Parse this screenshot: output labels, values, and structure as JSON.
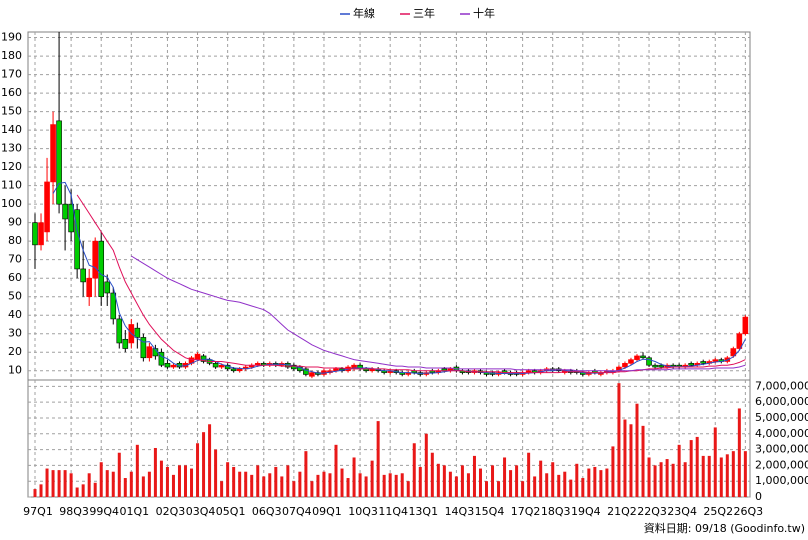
{
  "chart_data": [
    {
      "type": "candlestick",
      "legend_position": "top",
      "grid": true,
      "up_color": "#ff0000",
      "down_color": "#00cc00",
      "categories": [
        "97Q1",
        null,
        null,
        null,
        null,
        null,
        "98Q3",
        null,
        null,
        null,
        null,
        "99Q4",
        null,
        null,
        null,
        null,
        "01Q1",
        null,
        null,
        null,
        null,
        null,
        "02Q3",
        null,
        null,
        null,
        null,
        "03Q4",
        null,
        null,
        null,
        null,
        "05Q1",
        null,
        null,
        null,
        null,
        null,
        "06Q3",
        null,
        null,
        null,
        null,
        "07Q4",
        null,
        null,
        null,
        null,
        "09Q1",
        null,
        null,
        null,
        null,
        null,
        "10Q3",
        null,
        null,
        null,
        null,
        "11Q4",
        null,
        null,
        null,
        null,
        "13Q1",
        null,
        null,
        null,
        null,
        null,
        "14Q3",
        null,
        null,
        null,
        null,
        "15Q4",
        null,
        null,
        null,
        null,
        null,
        "17Q2",
        null,
        null,
        null,
        null,
        "18Q3",
        null,
        null,
        null,
        null,
        "19Q4",
        null,
        null,
        null,
        null,
        null,
        "21Q2",
        null,
        null,
        null,
        null,
        "22Q3",
        null,
        null,
        null,
        null,
        "23Q4",
        null,
        null,
        null,
        null,
        null,
        "25Q2",
        null,
        null,
        null,
        null,
        "26Q3"
      ],
      "open": [
        90,
        78,
        85,
        112,
        145,
        100,
        100,
        97,
        65,
        50,
        60,
        80,
        58,
        52,
        38,
        27,
        25,
        33,
        28,
        17,
        22,
        20,
        14,
        12,
        14,
        12,
        14,
        16,
        18,
        16,
        14,
        12,
        13,
        11,
        10,
        11,
        12,
        13,
        14,
        13,
        14,
        13,
        14,
        13,
        12,
        11,
        7,
        9,
        8,
        9,
        10,
        11,
        10,
        11,
        13,
        11,
        10,
        11,
        10,
        9,
        10,
        9,
        8,
        10,
        9,
        8,
        10,
        9,
        11,
        10,
        12,
        10,
        10,
        9,
        10,
        9,
        9,
        8,
        10,
        9,
        9,
        8,
        9,
        10,
        9,
        10,
        11,
        11,
        9,
        10,
        10,
        9,
        8,
        10,
        8,
        9,
        9,
        10,
        12,
        14,
        16,
        18,
        17,
        13,
        13,
        12,
        13,
        13,
        12,
        14,
        13,
        15,
        14,
        15,
        16,
        15,
        18,
        22,
        30
      ],
      "high": [
        95,
        95,
        125,
        150,
        193,
        110,
        108,
        100,
        80,
        65,
        82,
        85,
        62,
        55,
        40,
        32,
        38,
        36,
        30,
        25,
        24,
        22,
        16,
        14,
        15,
        15,
        18,
        20,
        19,
        17,
        15,
        14,
        14,
        12,
        12,
        13,
        14,
        15,
        15,
        15,
        15,
        15,
        15,
        14,
        13,
        12,
        10,
        10,
        11,
        11,
        12,
        12,
        13,
        14,
        14,
        12,
        12,
        12,
        11,
        11,
        11,
        10,
        10,
        11,
        10,
        10,
        11,
        11,
        12,
        12,
        13,
        11,
        11,
        11,
        11,
        10,
        10,
        10,
        11,
        10,
        10,
        10,
        11,
        11,
        11,
        12,
        12,
        12,
        11,
        11,
        11,
        10,
        10,
        11,
        10,
        11,
        11,
        13,
        15,
        17,
        19,
        20,
        18,
        14,
        14,
        14,
        14,
        14,
        14,
        15,
        15,
        16,
        16,
        17,
        17,
        18,
        23,
        31,
        40
      ],
      "low": [
        65,
        75,
        80,
        100,
        95,
        75,
        80,
        60,
        50,
        45,
        50,
        45,
        45,
        35,
        22,
        20,
        22,
        22,
        15,
        15,
        16,
        12,
        11,
        11,
        11,
        11,
        13,
        15,
        14,
        13,
        11,
        11,
        10,
        9,
        9,
        10,
        11,
        12,
        12,
        12,
        12,
        12,
        11,
        10,
        9,
        7,
        6,
        7,
        7,
        8,
        9,
        9,
        9,
        10,
        10,
        9,
        9,
        9,
        8,
        8,
        8,
        7,
        7,
        8,
        7,
        7,
        8,
        8,
        9,
        9,
        9,
        8,
        8,
        8,
        8,
        7,
        7,
        7,
        8,
        7,
        7,
        7,
        8,
        8,
        8,
        9,
        9,
        9,
        8,
        8,
        8,
        7,
        7,
        8,
        7,
        8,
        8,
        9,
        11,
        13,
        15,
        16,
        12,
        11,
        11,
        11,
        11,
        11,
        11,
        12,
        12,
        13,
        13,
        14,
        14,
        14,
        17,
        21,
        29
      ],
      "close": [
        78,
        90,
        112,
        143,
        100,
        92,
        85,
        65,
        58,
        60,
        80,
        50,
        52,
        38,
        25,
        22,
        35,
        28,
        17,
        23,
        18,
        13,
        12,
        13,
        12,
        14,
        17,
        19,
        15,
        14,
        12,
        13,
        11,
        10,
        11,
        12,
        13,
        14,
        13,
        14,
        13,
        14,
        12,
        11,
        10,
        8,
        9,
        8,
        10,
        10,
        11,
        10,
        12,
        13,
        11,
        10,
        11,
        10,
        9,
        10,
        9,
        8,
        9,
        9,
        8,
        9,
        9,
        10,
        10,
        11,
        10,
        9,
        9,
        10,
        9,
        8,
        8,
        9,
        9,
        8,
        8,
        9,
        10,
        9,
        10,
        11,
        10,
        10,
        10,
        9,
        9,
        8,
        9,
        9,
        9,
        10,
        10,
        12,
        14,
        16,
        18,
        17,
        13,
        12,
        12,
        13,
        12,
        12,
        13,
        13,
        14,
        14,
        15,
        16,
        15,
        17,
        22,
        30,
        39
      ],
      "series": [
        {
          "name": "年線",
          "color": "#2a4fc8",
          "values": [
            null,
            null,
            null,
            105.75,
            111.25,
            111.75,
            105,
            85.5,
            75,
            67,
            65.75,
            62,
            60.5,
            55,
            41.25,
            34.25,
            30,
            27.5,
            25.5,
            25.75,
            21.5,
            17.75,
            16.5,
            14,
            12.5,
            12.75,
            14,
            15.5,
            16.25,
            16.25,
            15,
            13.5,
            12.5,
            11.5,
            11.25,
            11,
            11.5,
            12.5,
            13,
            13.5,
            13.5,
            13.5,
            13.25,
            12.5,
            11.75,
            10.25,
            9.5,
            8.75,
            8.75,
            9.25,
            9.75,
            10.25,
            10.75,
            11.5,
            11.5,
            11.5,
            11.25,
            10.5,
            10,
            10,
            9.5,
            9,
            9,
            8.75,
            8.5,
            8.75,
            8.75,
            9,
            9.5,
            10,
            10.25,
            10,
            9.75,
            9.5,
            9.25,
            9,
            8.75,
            8.5,
            8.5,
            8.5,
            8.5,
            8.5,
            8.75,
            9,
            9.5,
            10,
            10,
            10.5,
            10.25,
            9.75,
            9.5,
            9,
            8.75,
            8.75,
            8.75,
            9.25,
            9.5,
            10.25,
            11.5,
            13,
            15,
            16.25,
            16,
            15,
            13.5,
            12.5,
            12.25,
            12.25,
            12.25,
            12.5,
            13,
            13.5,
            14,
            14.75,
            15,
            15.75,
            17.5,
            21,
            27
          ]
        },
        {
          "name": "三年",
          "color": "#e0105a",
          "values": [
            null,
            null,
            null,
            null,
            null,
            null,
            null,
            105,
            100,
            95,
            90,
            85,
            80,
            75,
            66,
            58,
            52,
            46,
            40,
            35,
            31,
            27,
            24,
            21,
            19,
            17,
            16,
            16,
            15.5,
            15,
            15,
            15,
            14.5,
            14,
            13.5,
            13,
            13,
            13,
            13,
            13,
            13,
            12.5,
            12.5,
            12.5,
            12.5,
            12,
            12,
            12,
            11.5,
            11.5,
            11.5,
            11.5,
            11,
            11,
            11,
            11,
            11,
            11,
            11,
            10.5,
            10.5,
            10.5,
            10.5,
            10,
            10,
            10,
            10,
            10,
            10,
            10,
            10,
            10,
            9.5,
            9.5,
            9.5,
            9.5,
            9.5,
            9.5,
            9,
            9,
            9,
            9,
            9,
            9,
            9,
            9,
            9,
            9,
            9.5,
            9.5,
            9.5,
            9.5,
            9,
            9,
            9,
            9,
            9,
            9.5,
            9.5,
            10,
            10,
            10.5,
            11,
            11,
            11.5,
            11.5,
            12,
            12,
            12,
            12,
            12,
            12,
            12.5,
            12.5,
            13,
            13,
            13.5,
            14.5,
            16
          ]
        },
        {
          "name": "十年",
          "color": "#9030c8",
          "values": [
            null,
            null,
            null,
            null,
            null,
            null,
            null,
            null,
            null,
            null,
            null,
            null,
            null,
            null,
            null,
            null,
            72,
            70,
            68,
            66,
            64,
            62,
            60,
            58.5,
            57,
            55.5,
            54,
            53,
            52,
            51,
            50,
            49,
            48,
            47.5,
            47,
            46,
            45,
            44,
            43,
            41,
            38,
            35,
            32,
            30,
            28,
            26,
            24,
            22.5,
            21,
            20,
            19,
            18,
            17,
            16,
            15.5,
            15,
            14.5,
            14,
            13.5,
            13,
            12.5,
            12.5,
            12,
            12,
            12,
            11.5,
            11.5,
            11.5,
            11.5,
            11.5,
            11,
            11,
            11,
            11,
            11,
            11,
            11,
            11,
            11,
            11,
            10.5,
            10.5,
            10.5,
            10.5,
            10.5,
            10.5,
            10.5,
            10.5,
            10.5,
            10.5,
            10,
            10,
            10,
            10,
            10,
            10,
            10,
            10,
            10,
            10,
            10.5,
            10.5,
            10.5,
            10.5,
            10.5,
            10.5,
            11,
            11,
            11,
            11,
            11,
            11,
            11,
            11.5,
            11.5,
            11.5,
            11.5,
            12,
            13
          ]
        }
      ],
      "ylim": [
        5,
        193
      ],
      "yticks": [
        10,
        20,
        30,
        40,
        50,
        60,
        70,
        80,
        90,
        100,
        110,
        120,
        130,
        140,
        150,
        160,
        170,
        180,
        190
      ],
      "source_note": "資料日期: 09/18 (Goodinfo.tw)"
    },
    {
      "type": "bar",
      "color": "#e81818",
      "grid": true,
      "values": [
        500000,
        800000,
        1800000,
        1700000,
        1700000,
        1700000,
        1500000,
        600000,
        800000,
        1500000,
        900000,
        2200000,
        1700000,
        1600000,
        2800000,
        1200000,
        1600000,
        3300000,
        1300000,
        1600000,
        3100000,
        2300000,
        1900000,
        1400000,
        2000000,
        2000000,
        1800000,
        3400000,
        4100000,
        4600000,
        3000000,
        1000000,
        2200000,
        1900000,
        1600000,
        1600000,
        1400000,
        2000000,
        1300000,
        1500000,
        1900000,
        1300000,
        2000000,
        1000000,
        1600000,
        2900000,
        1000000,
        1400000,
        1600000,
        1500000,
        3300000,
        1800000,
        1200000,
        2500000,
        1500000,
        1300000,
        2300000,
        4800000,
        1400000,
        1500000,
        1400000,
        1500000,
        1000000,
        3400000,
        1900000,
        4000000,
        2800000,
        2100000,
        2000000,
        1600000,
        1300000,
        2000000,
        1500000,
        2600000,
        1800000,
        1000000,
        2000000,
        1000000,
        2500000,
        1700000,
        2000000,
        1000000,
        2800000,
        1300000,
        2300000,
        1500000,
        2200000,
        1400000,
        1600000,
        1100000,
        2100000,
        1200000,
        1800000,
        1900000,
        1700000,
        1800000,
        3200000,
        7200000,
        4900000,
        4600000,
        5900000,
        4500000,
        2500000,
        2000000,
        2200000,
        2400000,
        2100000,
        3300000,
        2200000,
        3600000,
        3800000,
        2600000,
        2600000,
        4400000,
        2500000,
        2700000,
        2900000,
        5600000,
        2900000
      ],
      "ylim": [
        0,
        7400000
      ],
      "yticks": [
        0,
        {
          "value": 1000000,
          "label": "1,000,000"
        },
        {
          "value": 2000000,
          "label": "2,000,000"
        },
        {
          "value": 3000000,
          "label": "3,000,000"
        },
        {
          "value": 4000000,
          "label": "4,000,000"
        },
        {
          "value": 5000000,
          "label": "5,000,000"
        },
        {
          "value": 6000000,
          "label": "6,000,000"
        },
        {
          "value": 7000000,
          "label": "7,000,000"
        }
      ]
    }
  ]
}
